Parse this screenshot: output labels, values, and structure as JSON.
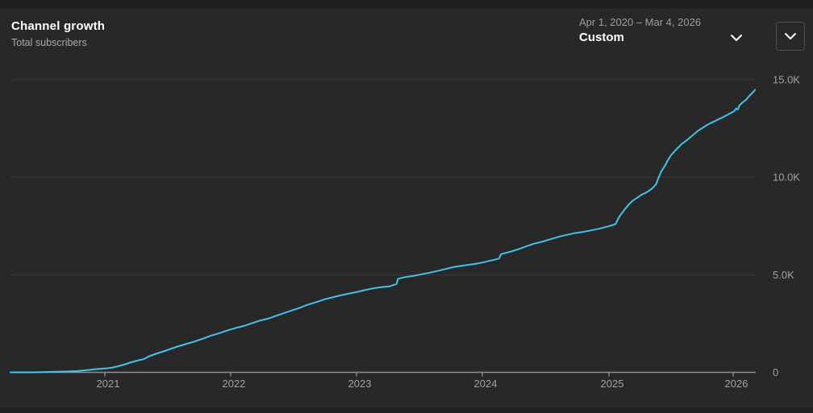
{
  "header": {
    "title": "Channel growth",
    "subtitle": "Total subscribers",
    "date_range": "Apr 1, 2020 – Mar 4, 2026",
    "date_range_mode": "Custom"
  },
  "icons": {
    "range_dropdown": "chevron-down-icon",
    "collapse_card": "chevron-down-icon"
  },
  "colors": {
    "page_bg": "#1f1f1f",
    "card_bg": "#282828",
    "line": "#3fc3f1",
    "grid": "#3a3a3a",
    "axis": "#8f8f8f",
    "text_primary": "#ffffff",
    "text_secondary": "#aaaaaa",
    "axis_text": "#a2a2a2"
  },
  "chart_data": {
    "type": "line",
    "title": "Channel growth",
    "series_name": "Total subscribers",
    "x_unit": "fraction of time axis from Apr 1, 2020 (0.0) to Mar 4, 2026 (1.0)",
    "x_axis": {
      "start_label": "Apr 1, 2020",
      "end_label": "Mar 4, 2026",
      "ticks": [
        {
          "label": "2021",
          "t": 0.1266
        },
        {
          "label": "2022",
          "t": 0.2954
        },
        {
          "label": "2023",
          "t": 0.4643
        },
        {
          "label": "2024",
          "t": 0.6331
        },
        {
          "label": "2025",
          "t": 0.803
        },
        {
          "label": "2026",
          "t": 0.9697
        }
      ]
    },
    "y_axis": {
      "ylim": [
        0,
        15000
      ],
      "ticks": [
        {
          "label": "0",
          "value": 0
        },
        {
          "label": "5.0K",
          "value": 5000
        },
        {
          "label": "10.0K",
          "value": 10000
        },
        {
          "label": "15.0K",
          "value": 15000
        }
      ]
    },
    "grid": "horizontal-only",
    "legend": "none",
    "points": [
      [
        0.0,
        0
      ],
      [
        0.013,
        0
      ],
      [
        0.029,
        0
      ],
      [
        0.051,
        20
      ],
      [
        0.073,
        41
      ],
      [
        0.089,
        62
      ],
      [
        0.1,
        103
      ],
      [
        0.11,
        145
      ],
      [
        0.121,
        186
      ],
      [
        0.13,
        207
      ],
      [
        0.137,
        248
      ],
      [
        0.146,
        331
      ],
      [
        0.154,
        413
      ],
      [
        0.16,
        496
      ],
      [
        0.166,
        558
      ],
      [
        0.172,
        620
      ],
      [
        0.179,
        682
      ],
      [
        0.186,
        826
      ],
      [
        0.195,
        950
      ],
      [
        0.202,
        1033
      ],
      [
        0.213,
        1178
      ],
      [
        0.224,
        1322
      ],
      [
        0.235,
        1446
      ],
      [
        0.246,
        1570
      ],
      [
        0.259,
        1736
      ],
      [
        0.269,
        1880
      ],
      [
        0.28,
        2004
      ],
      [
        0.291,
        2149
      ],
      [
        0.302,
        2273
      ],
      [
        0.313,
        2376
      ],
      [
        0.324,
        2521
      ],
      [
        0.334,
        2645
      ],
      [
        0.345,
        2748
      ],
      [
        0.356,
        2893
      ],
      [
        0.367,
        3037
      ],
      [
        0.378,
        3182
      ],
      [
        0.388,
        3306
      ],
      [
        0.399,
        3471
      ],
      [
        0.41,
        3595
      ],
      [
        0.421,
        3740
      ],
      [
        0.432,
        3843
      ],
      [
        0.443,
        3946
      ],
      [
        0.453,
        4029
      ],
      [
        0.464,
        4112
      ],
      [
        0.475,
        4215
      ],
      [
        0.486,
        4298
      ],
      [
        0.497,
        4360
      ],
      [
        0.508,
        4401
      ],
      [
        0.516,
        4504
      ],
      [
        0.518,
        4525
      ],
      [
        0.52,
        4793
      ],
      [
        0.529,
        4876
      ],
      [
        0.54,
        4938
      ],
      [
        0.551,
        5021
      ],
      [
        0.562,
        5103
      ],
      [
        0.572,
        5186
      ],
      [
        0.583,
        5289
      ],
      [
        0.594,
        5393
      ],
      [
        0.605,
        5455
      ],
      [
        0.616,
        5517
      ],
      [
        0.627,
        5579
      ],
      [
        0.637,
        5661
      ],
      [
        0.646,
        5744
      ],
      [
        0.653,
        5806
      ],
      [
        0.656,
        5847
      ],
      [
        0.658,
        6054
      ],
      [
        0.664,
        6116
      ],
      [
        0.672,
        6198
      ],
      [
        0.681,
        6302
      ],
      [
        0.691,
        6446
      ],
      [
        0.702,
        6591
      ],
      [
        0.713,
        6694
      ],
      [
        0.724,
        6818
      ],
      [
        0.735,
        6942
      ],
      [
        0.746,
        7045
      ],
      [
        0.756,
        7128
      ],
      [
        0.767,
        7190
      ],
      [
        0.778,
        7273
      ],
      [
        0.789,
        7355
      ],
      [
        0.8,
        7459
      ],
      [
        0.806,
        7521
      ],
      [
        0.812,
        7603
      ],
      [
        0.815,
        7851
      ],
      [
        0.819,
        8099
      ],
      [
        0.825,
        8388
      ],
      [
        0.83,
        8616
      ],
      [
        0.835,
        8802
      ],
      [
        0.841,
        8946
      ],
      [
        0.847,
        9112
      ],
      [
        0.853,
        9215
      ],
      [
        0.858,
        9339
      ],
      [
        0.862,
        9463
      ],
      [
        0.866,
        9628
      ],
      [
        0.869,
        9917
      ],
      [
        0.873,
        10289
      ],
      [
        0.878,
        10579
      ],
      [
        0.882,
        10868
      ],
      [
        0.886,
        11116
      ],
      [
        0.891,
        11322
      ],
      [
        0.896,
        11529
      ],
      [
        0.901,
        11715
      ],
      [
        0.907,
        11880
      ],
      [
        0.912,
        12045
      ],
      [
        0.918,
        12231
      ],
      [
        0.923,
        12397
      ],
      [
        0.929,
        12541
      ],
      [
        0.934,
        12665
      ],
      [
        0.939,
        12769
      ],
      [
        0.945,
        12872
      ],
      [
        0.95,
        12975
      ],
      [
        0.956,
        13079
      ],
      [
        0.961,
        13182
      ],
      [
        0.966,
        13285
      ],
      [
        0.971,
        13388
      ],
      [
        0.974,
        13533
      ],
      [
        0.976,
        13471
      ],
      [
        0.978,
        13678
      ],
      [
        0.982,
        13822
      ],
      [
        0.987,
        13967
      ],
      [
        0.991,
        14153
      ],
      [
        0.996,
        14339
      ],
      [
        0.999,
        14483
      ]
    ]
  }
}
